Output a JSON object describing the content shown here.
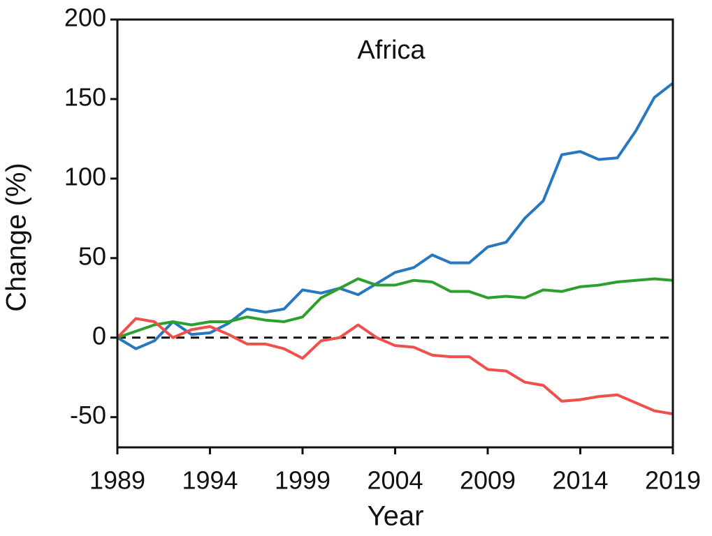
{
  "chart_data": {
    "type": "line",
    "title": "Africa",
    "xlabel": "Year",
    "ylabel": "Change (%)",
    "x": [
      1989,
      1990,
      1991,
      1992,
      1993,
      1994,
      1995,
      1996,
      1997,
      1998,
      1999,
      2000,
      2001,
      2002,
      2003,
      2004,
      2005,
      2006,
      2007,
      2008,
      2009,
      2010,
      2011,
      2012,
      2013,
      2014,
      2015,
      2016,
      2017,
      2018,
      2019
    ],
    "series": [
      {
        "color": "#2878c0",
        "values": [
          0,
          -7,
          -2,
          10,
          2,
          3,
          9,
          18,
          16,
          18,
          30,
          28,
          31,
          27,
          34,
          41,
          44,
          52,
          47,
          47,
          57,
          60,
          75,
          86,
          115,
          117,
          112,
          113,
          130,
          151,
          160
        ]
      },
      {
        "color": "#2ca02c",
        "values": [
          0,
          4,
          8,
          10,
          8,
          10,
          10,
          13,
          11,
          10,
          13,
          25,
          31,
          37,
          33,
          33,
          36,
          35,
          29,
          29,
          25,
          26,
          25,
          30,
          29,
          32,
          33,
          35,
          36,
          37,
          36
        ]
      },
      {
        "color": "#f0504a",
        "values": [
          0,
          12,
          10,
          0,
          5,
          7,
          2,
          -4,
          -4,
          -7,
          -13,
          -2,
          0,
          8,
          0,
          -5,
          -6,
          -11,
          -12,
          -12,
          -20,
          -21,
          -28,
          -30,
          -40,
          -39,
          -37,
          -36,
          -41,
          -46,
          -48
        ]
      }
    ],
    "reference_lines": [
      0
    ],
    "xlim": [
      1989,
      2019
    ],
    "xticks": [
      1989,
      1994,
      1999,
      2004,
      2009,
      2014,
      2019
    ],
    "ylim": [
      -69,
      200
    ],
    "yticks": [
      -50,
      0,
      50,
      100,
      150,
      200
    ]
  }
}
